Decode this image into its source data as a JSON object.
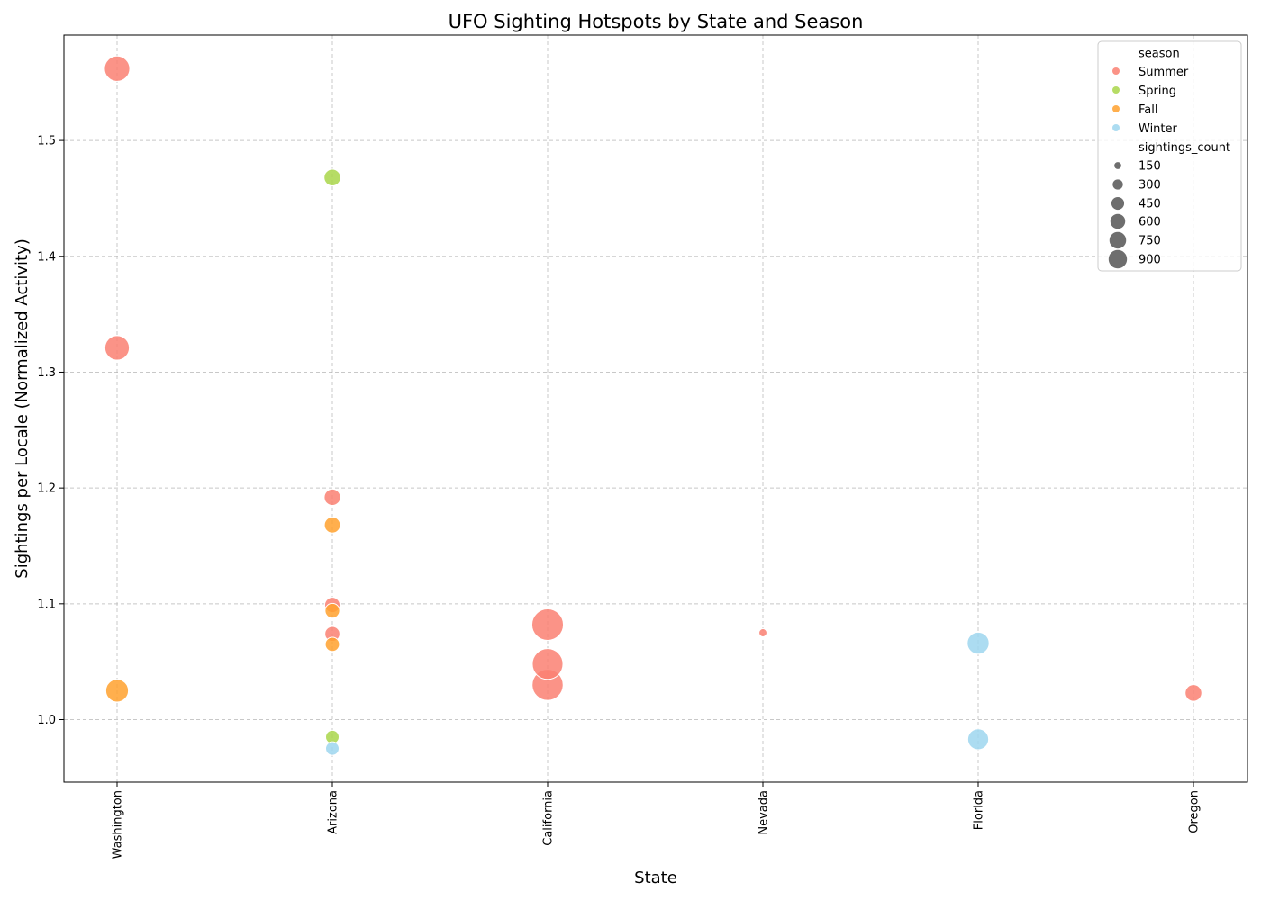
{
  "chart_data": {
    "type": "scatter",
    "title": "UFO Sighting Hotspots by State and Season",
    "xlabel": "State",
    "ylabel": "Sightings per Locale (Normalized Activity)",
    "categories": [
      "Washington",
      "Arizona",
      "California",
      "Nevada",
      "Florida",
      "Oregon"
    ],
    "ylim": [
      0.946,
      1.591
    ],
    "yticks": [
      1.0,
      1.1,
      1.2,
      1.3,
      1.4,
      1.5
    ],
    "ytick_labels": [
      "1.0",
      "1.1",
      "1.2",
      "1.3",
      "1.4",
      "1.5"
    ],
    "grid": true,
    "legend_position": "top-right",
    "hue_title": "season",
    "size_title": "sightings_count",
    "season_colors": {
      "Summer": "#FA8072",
      "Spring": "#A9D64A",
      "Fall": "#FFA12E",
      "Winter": "#9DD6EE"
    },
    "size_legend": [
      150,
      300,
      450,
      600,
      750,
      900
    ],
    "series": [
      {
        "name": "Summer",
        "points": [
          {
            "x": "Washington",
            "y": 1.562,
            "size": 600
          },
          {
            "x": "Washington",
            "y": 1.321,
            "size": 560
          },
          {
            "x": "Arizona",
            "y": 1.192,
            "size": 250
          },
          {
            "x": "Arizona",
            "y": 1.099,
            "size": 220
          },
          {
            "x": "Arizona",
            "y": 1.074,
            "size": 210
          },
          {
            "x": "California",
            "y": 1.082,
            "size": 930
          },
          {
            "x": "California",
            "y": 1.048,
            "size": 880
          },
          {
            "x": "California",
            "y": 1.03,
            "size": 900
          },
          {
            "x": "Nevada",
            "y": 1.075,
            "size": 60
          },
          {
            "x": "Oregon",
            "y": 1.023,
            "size": 260
          }
        ]
      },
      {
        "name": "Spring",
        "points": [
          {
            "x": "Arizona",
            "y": 1.468,
            "size": 260
          },
          {
            "x": "Arizona",
            "y": 0.985,
            "size": 170
          }
        ]
      },
      {
        "name": "Fall",
        "points": [
          {
            "x": "Washington",
            "y": 1.025,
            "size": 480
          },
          {
            "x": "Arizona",
            "y": 1.168,
            "size": 240
          },
          {
            "x": "Arizona",
            "y": 1.094,
            "size": 200
          },
          {
            "x": "Arizona",
            "y": 1.065,
            "size": 190
          }
        ]
      },
      {
        "name": "Winter",
        "points": [
          {
            "x": "Arizona",
            "y": 0.975,
            "size": 170
          },
          {
            "x": "Florida",
            "y": 1.066,
            "size": 450
          },
          {
            "x": "Florida",
            "y": 0.983,
            "size": 410
          }
        ]
      }
    ]
  }
}
